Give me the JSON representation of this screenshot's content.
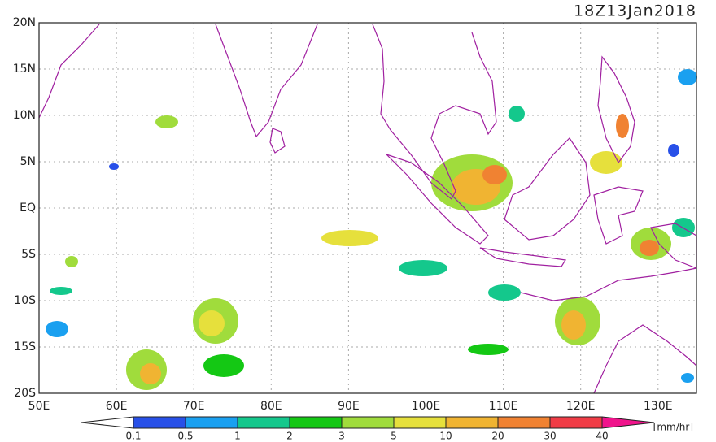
{
  "title": "18Z13Jan2018",
  "lat_labels": [
    "20N",
    "15N",
    "10N",
    "5N",
    "EQ",
    "5S",
    "10S",
    "15S",
    "20S"
  ],
  "lon_labels": [
    "50E",
    "60E",
    "70E",
    "80E",
    "90E",
    "100E",
    "110E",
    "120E",
    "130E"
  ],
  "colorbar": {
    "labels": [
      "0.1",
      "0.5",
      "1",
      "2",
      "3",
      "5",
      "10",
      "20",
      "30",
      "40"
    ],
    "colors": [
      "#ffffff",
      "#2850e8",
      "#1aa0f0",
      "#14c88c",
      "#14c814",
      "#a0dc3c",
      "#e6e03c",
      "#f0b432",
      "#f08232",
      "#f03c46",
      "#f0148c"
    ],
    "unit": "[mm/hr]"
  }
}
